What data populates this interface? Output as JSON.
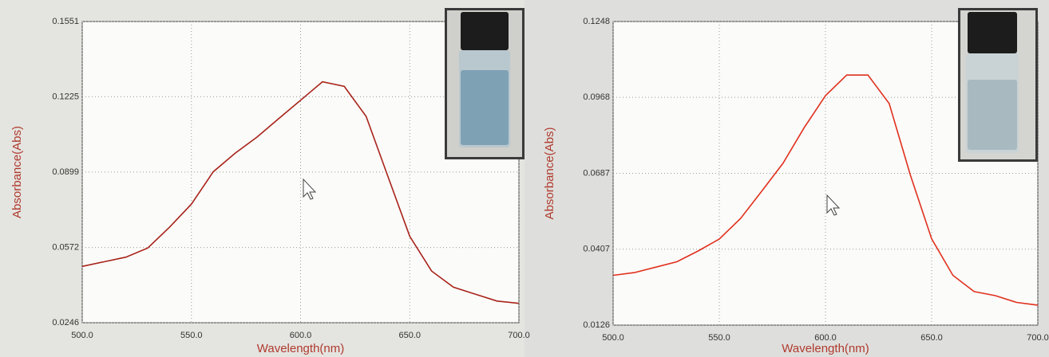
{
  "chart_data": [
    {
      "type": "line",
      "x_label": "Wavelength(nm)",
      "y_label": "Absorbance(Abs)",
      "color": "#a8231a",
      "grid": true,
      "xlim": [
        500,
        700
      ],
      "ylim": [
        0.0246,
        0.1551
      ],
      "xticks": [
        {
          "value": 500,
          "label": "500.0"
        },
        {
          "value": 550,
          "label": "550.0"
        },
        {
          "value": 600,
          "label": "600.0"
        },
        {
          "value": 650,
          "label": "650.0"
        },
        {
          "value": 700,
          "label": "700.0"
        }
      ],
      "yticks": [
        0.0246,
        0.0572,
        0.0899,
        0.1225,
        0.1551
      ],
      "x": [
        500,
        510,
        520,
        530,
        540,
        550,
        560,
        570,
        580,
        590,
        600,
        610,
        620,
        630,
        640,
        650,
        660,
        670,
        680,
        690,
        700
      ],
      "values": [
        0.049,
        0.051,
        0.053,
        0.057,
        0.066,
        0.076,
        0.09,
        0.098,
        0.105,
        0.113,
        0.121,
        0.129,
        0.127,
        0.114,
        0.088,
        0.062,
        0.047,
        0.04,
        0.037,
        0.034,
        0.033
      ]
    },
    {
      "type": "line",
      "x_label": "Wavelength(nm)",
      "y_label": "Absorbance(Abs)",
      "color": "#e0301e",
      "grid": true,
      "xlim": [
        500,
        700
      ],
      "ylim": [
        0.0126,
        0.1248
      ],
      "xticks": [
        {
          "value": 500,
          "label": "500.0"
        },
        {
          "value": 550,
          "label": "550.0"
        },
        {
          "value": 600,
          "label": "600.0"
        },
        {
          "value": 650,
          "label": "650.0"
        },
        {
          "value": 700,
          "label": "700.0"
        }
      ],
      "yticks": [
        0.0126,
        0.0407,
        0.0687,
        0.0968,
        0.1248
      ],
      "x": [
        500,
        510,
        520,
        530,
        540,
        550,
        560,
        570,
        580,
        590,
        600,
        610,
        620,
        630,
        640,
        650,
        660,
        670,
        680,
        690,
        700
      ],
      "values": [
        0.031,
        0.032,
        0.034,
        0.036,
        0.04,
        0.0444,
        0.052,
        0.0621,
        0.0724,
        0.0856,
        0.0974,
        0.105,
        0.105,
        0.0945,
        0.068,
        0.0445,
        0.031,
        0.025,
        0.0235,
        0.021,
        0.02
      ]
    }
  ]
}
